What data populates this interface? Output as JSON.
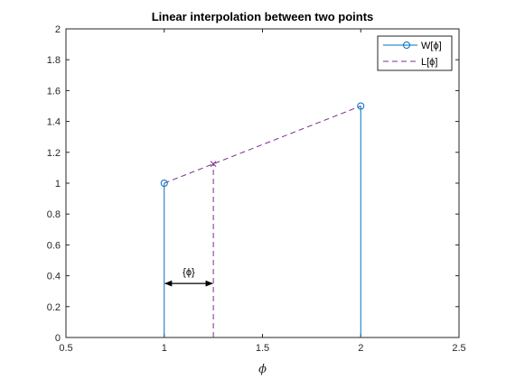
{
  "chart_data": {
    "type": "line",
    "title": "Linear interpolation between two points",
    "xlabel": "ϕ",
    "ylabel": "",
    "xlim": [
      0.5,
      2.5
    ],
    "ylim": [
      0,
      2
    ],
    "x_ticks": [
      "0.5",
      "1",
      "1.5",
      "2",
      "2.5"
    ],
    "y_ticks": [
      "0",
      "0.2",
      "0.4",
      "0.6",
      "0.8",
      "1",
      "1.2",
      "1.4",
      "1.6",
      "1.8",
      "2"
    ],
    "grid": false,
    "legend_position": "top-right",
    "series": [
      {
        "name": "W[ϕ]",
        "style": "stem",
        "marker": "circle",
        "color": "#0072BD",
        "x": [
          1,
          2
        ],
        "y": [
          1,
          1.5
        ]
      },
      {
        "name": "L[ϕ]",
        "style": "dashed",
        "marker": "x",
        "color": "#7E2F8E",
        "x": [
          1,
          1.25,
          2
        ],
        "y": [
          1,
          1.125,
          1.5
        ],
        "stem_x": 1.25,
        "stem_y": 1.125
      }
    ],
    "annotations": [
      {
        "text": "{ϕ}",
        "arrow": "double",
        "x_from": 1,
        "x_to": 1.25,
        "y": 0.35
      }
    ]
  }
}
